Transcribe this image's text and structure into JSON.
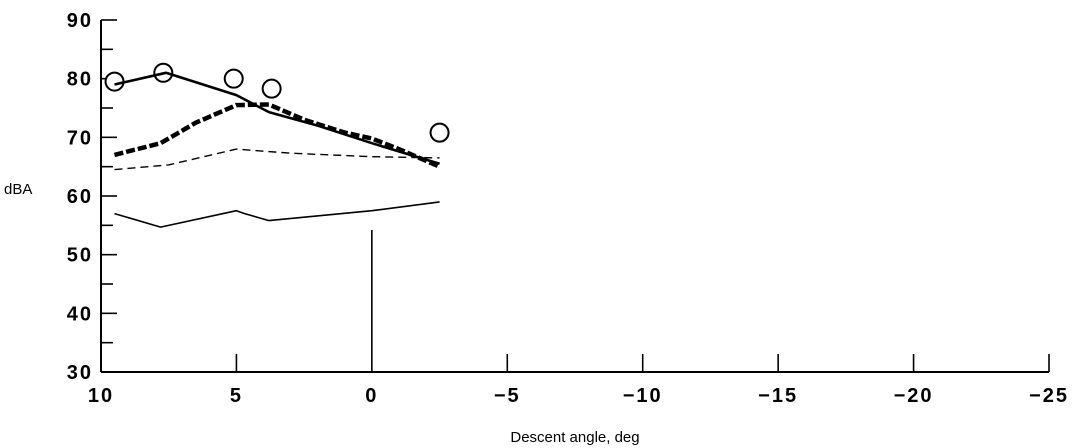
{
  "chart_data": {
    "type": "line",
    "title": "",
    "xlabel": "Descent angle, deg",
    "ylabel": "dBA",
    "xlim": [
      10,
      -25
    ],
    "ylim": [
      30,
      90
    ],
    "x_ticks": [
      10,
      5,
      0,
      -5,
      -10,
      -15,
      -20,
      -25
    ],
    "x_tick_labels": [
      "10",
      "5",
      "0",
      "−5",
      "−10",
      "−15",
      "−20",
      "−25"
    ],
    "y_ticks": [
      30,
      40,
      50,
      60,
      70,
      80,
      90
    ],
    "y_tick_labels": [
      "30",
      "40",
      "50",
      "60",
      "70",
      "80",
      "90"
    ],
    "grid": false,
    "legend": "none",
    "series": [
      {
        "style": "markers-circle",
        "x": [
          9.5,
          7.7,
          5.1,
          3.7,
          -2.5
        ],
        "y": [
          79.5,
          81,
          80,
          78.3,
          70.8
        ]
      },
      {
        "style": "solid-thick",
        "x": [
          9.5,
          7.6,
          5,
          3.8,
          2,
          0,
          -2.5
        ],
        "y": [
          79,
          81,
          77.2,
          74.3,
          72,
          69,
          65.5
        ]
      },
      {
        "style": "dashed-thick",
        "x": [
          9.5,
          7.8,
          6.5,
          5,
          3.8,
          2.5,
          1,
          0,
          -1,
          -2.5
        ],
        "y": [
          67,
          69,
          72.5,
          75.5,
          75.6,
          73,
          70.8,
          69.8,
          68,
          65
        ]
      },
      {
        "style": "dashed-thin",
        "x": [
          9.5,
          7.5,
          5,
          3,
          0,
          -2.5
        ],
        "y": [
          64.5,
          65.3,
          68,
          67.3,
          66.7,
          66.5
        ]
      },
      {
        "style": "solid-thin",
        "x": [
          9.5,
          7.8,
          5,
          4.7,
          3.8,
          0,
          -2.5
        ],
        "y": [
          57,
          54.7,
          57.5,
          57,
          55.8,
          57.5,
          59
        ]
      }
    ]
  }
}
